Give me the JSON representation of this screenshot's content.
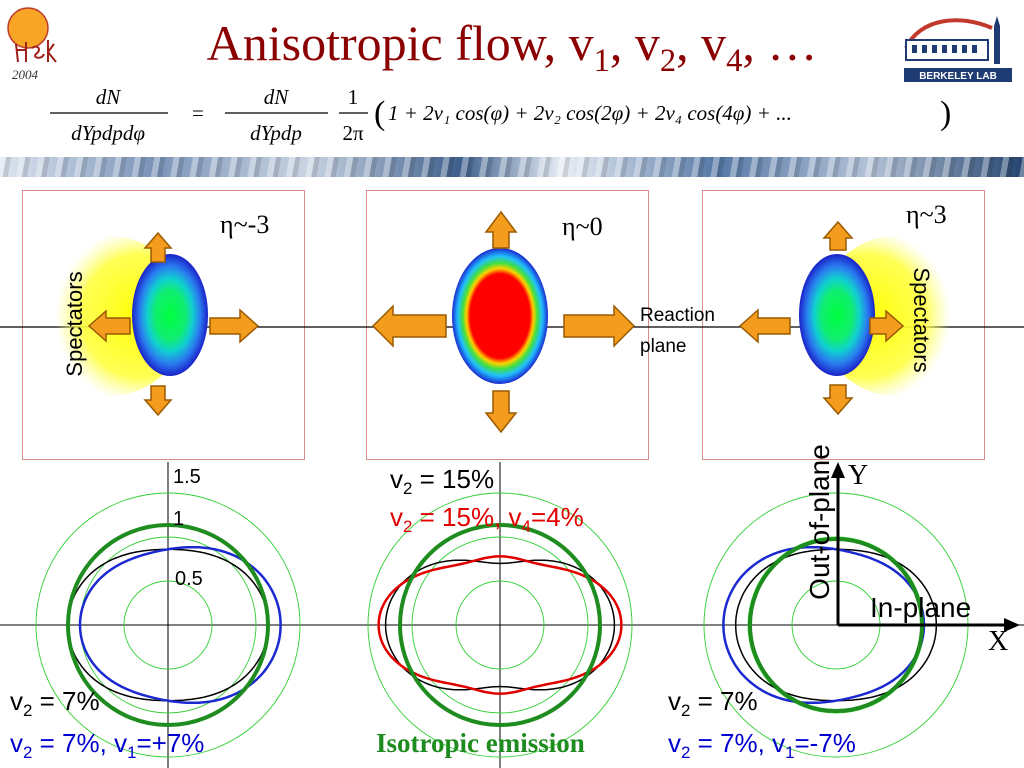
{
  "title": "Anisotropic flow, v₁, v₂, v₄, …",
  "logo_left": {
    "year": "2004"
  },
  "logo_right": {
    "text": "BERKELEY LAB"
  },
  "equation": {
    "lhs_num": "dN",
    "lhs_den": "dYp₝dp₝dφ",
    "rhs_num": "dN",
    "rhs_den": "dYp₝dp₝",
    "frac2_num": "1",
    "frac2_den": "2π",
    "series": "1 + 2v₁ cos(φ) + 2v₂ cos(2φ) + 2v₄ cos(4φ) + ..."
  },
  "top_panels": {
    "left": {
      "eta": "η~-3",
      "spectators": "Spectators"
    },
    "center": {
      "eta": "η~0",
      "reaction_plane_line1": "Reaction",
      "reaction_plane_line2": "plane"
    },
    "right": {
      "eta": "η~3",
      "spectators": "Spectators"
    }
  },
  "polar_plots": {
    "tick_labels": [
      "1.5",
      "1",
      "0.5"
    ],
    "left": {
      "label_black_v2": "v",
      "label_black_rest": " = 7%",
      "label_blue_pre": "v",
      "label_blue_mid": " = 7%, v",
      "label_blue_rest": "=+7%"
    },
    "center": {
      "label_black_v2": "v",
      "label_black_rest": " = 15%",
      "label_red_pre": "v",
      "label_red_mid": " = 15%, v",
      "label_red_rest": "=4%",
      "isotropic": "Isotropic emission"
    },
    "right": {
      "label_black_v2": "v",
      "label_black_rest": " = 7%",
      "label_blue_pre": "v",
      "label_blue_mid": " = 7%, v",
      "label_blue_rest": "=-7%"
    }
  },
  "axes_labels": {
    "y": "Y",
    "x": "X",
    "out_of_plane": "Out-of-plane",
    "in_plane": "In-plane"
  },
  "subs": {
    "two": "2",
    "one": "1",
    "four": "4"
  },
  "colors": {
    "title": "#8b0000",
    "arrow_fill": "#f39c1d",
    "arrow_stroke": "#9a5a00",
    "isotropic": "#1e8c1e",
    "blue": "#0000d0",
    "red": "#e00000"
  }
}
